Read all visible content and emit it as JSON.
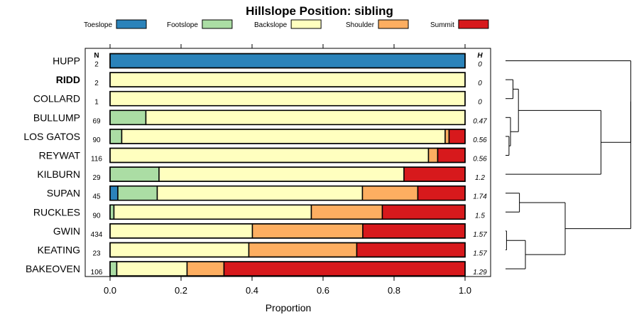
{
  "chart_data": {
    "type": "bar",
    "orientation": "horizontal",
    "stacked": true,
    "title": "Hillslope Position: sibling",
    "xlabel": "Proportion",
    "ylabel": "",
    "xlim": [
      0,
      1
    ],
    "xticks": [
      "0.0",
      "0.2",
      "0.4",
      "0.6",
      "0.8",
      "1.0"
    ],
    "column_headers": {
      "n": "N",
      "h": "H"
    },
    "categories": [
      "HUPP",
      "RIDD",
      "COLLARD",
      "BULLUMP",
      "LOS GATOS",
      "REYWAT",
      "KILBURN",
      "SUPAN",
      "RUCKLES",
      "GWIN",
      "KEATING",
      "BAKEOVEN"
    ],
    "bold_category": "RIDD",
    "n": [
      "2",
      "2",
      "1",
      "69",
      "90",
      "116",
      "29",
      "45",
      "90",
      "434",
      "23",
      "106"
    ],
    "h": [
      "0",
      "0",
      "0",
      "0.47",
      "0.56",
      "0.56",
      "1.2",
      "1.74",
      "1.5",
      "1.57",
      "1.57",
      "1.29"
    ],
    "series": [
      {
        "name": "Toeslope",
        "color": "#2b83ba",
        "values": [
          1.0,
          0,
          0,
          0,
          0,
          0,
          0,
          0.022,
          0,
          0,
          0,
          0
        ]
      },
      {
        "name": "Footslope",
        "color": "#abdda4",
        "values": [
          0,
          0,
          0,
          0.101,
          0.033,
          0,
          0.138,
          0.111,
          0.011,
          0,
          0,
          0.019
        ]
      },
      {
        "name": "Backslope",
        "color": "#ffffbf",
        "values": [
          0,
          1.0,
          1.0,
          0.899,
          0.911,
          0.897,
          0.69,
          0.578,
          0.556,
          0.401,
          0.391,
          0.198
        ]
      },
      {
        "name": "Shoulder",
        "color": "#fdae61",
        "values": [
          0,
          0,
          0,
          0,
          0.011,
          0.026,
          0,
          0.156,
          0.2,
          0.311,
          0.304,
          0.104
        ]
      },
      {
        "name": "Summit",
        "color": "#d7191c",
        "values": [
          0,
          0,
          0,
          0,
          0.045,
          0.077,
          0.172,
          0.133,
          0.233,
          0.288,
          0.305,
          0.679
        ]
      }
    ],
    "dendrogram": "right"
  }
}
